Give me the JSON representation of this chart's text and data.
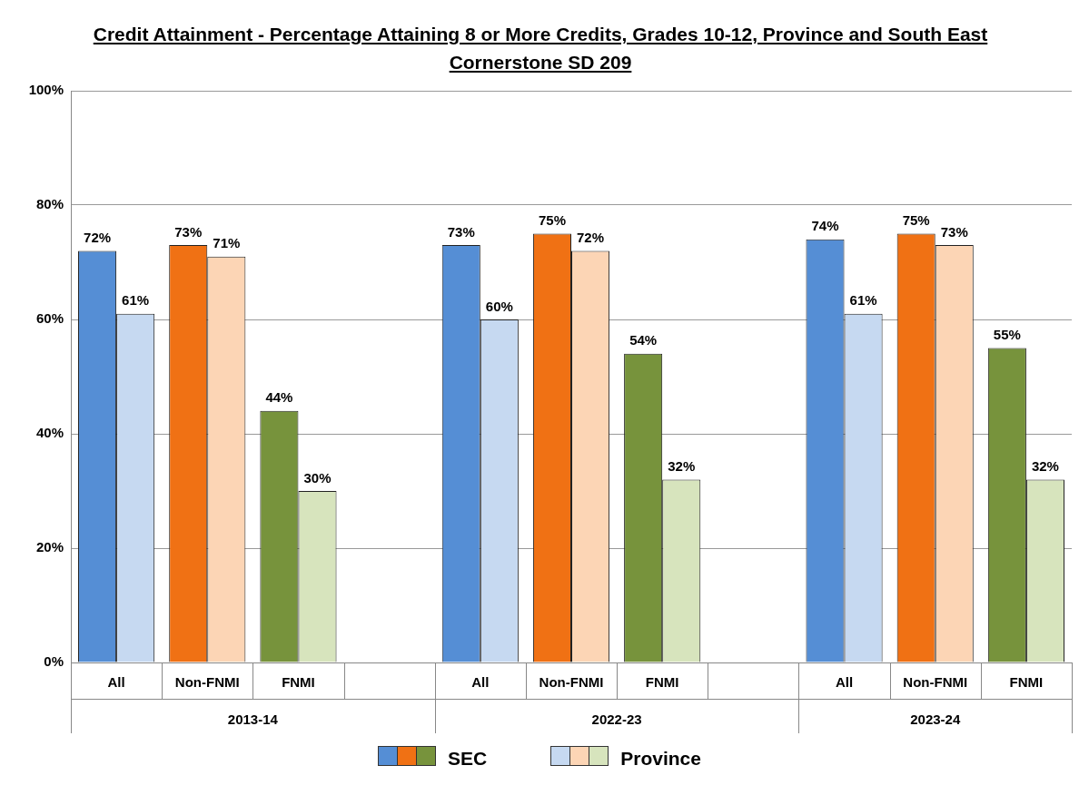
{
  "chart_data": {
    "type": "bar",
    "title": "Credit Attainment - Percentage Attaining 8 or More Credits, Grades 10-12, Province and South East Cornerstone SD 209",
    "categories": [
      "All",
      "Non-FNMI",
      "FNMI",
      null,
      "All",
      "Non-FNMI",
      "FNMI",
      null,
      "All",
      "Non-FNMI",
      "FNMI"
    ],
    "series": [
      {
        "name": "SEC",
        "colors": [
          "#558ed5",
          "#f07114",
          "#77933c",
          null,
          "#558ed5",
          "#f07114",
          "#77933c",
          null,
          "#558ed5",
          "#f07114",
          "#77933c"
        ],
        "values": [
          72,
          73,
          44,
          null,
          73,
          75,
          54,
          null,
          74,
          75,
          55
        ],
        "value_labels": [
          "72%",
          "73%",
          "44%",
          null,
          "73%",
          "75%",
          "54%",
          null,
          "74%",
          "75%",
          "55%"
        ]
      },
      {
        "name": "Province",
        "colors": [
          "#c6d9f1",
          "#fcd5b5",
          "#d7e4bd",
          null,
          "#c6d9f1",
          "#fcd5b5",
          "#d7e4bd",
          null,
          "#c6d9f1",
          "#fcd5b5",
          "#d7e4bd"
        ],
        "values": [
          61,
          71,
          30,
          null,
          60,
          72,
          32,
          null,
          61,
          73,
          32
        ],
        "value_labels": [
          "61%",
          "71%",
          "30%",
          null,
          "60%",
          "72%",
          "32%",
          null,
          "61%",
          "73%",
          "32%"
        ]
      }
    ],
    "annotations": [
      "2013-14",
      "2022-23",
      "2023-24"
    ],
    "ylim": [
      0,
      100
    ],
    "yticks": [
      {
        "value": 0,
        "label": "0%"
      },
      {
        "value": 20,
        "label": "20%"
      },
      {
        "value": 40,
        "label": "40%"
      },
      {
        "value": 60,
        "label": "60%"
      },
      {
        "value": 80,
        "label": "80%"
      },
      {
        "value": 100,
        "label": "100%"
      }
    ],
    "grid": "y",
    "legend": "bottom"
  }
}
